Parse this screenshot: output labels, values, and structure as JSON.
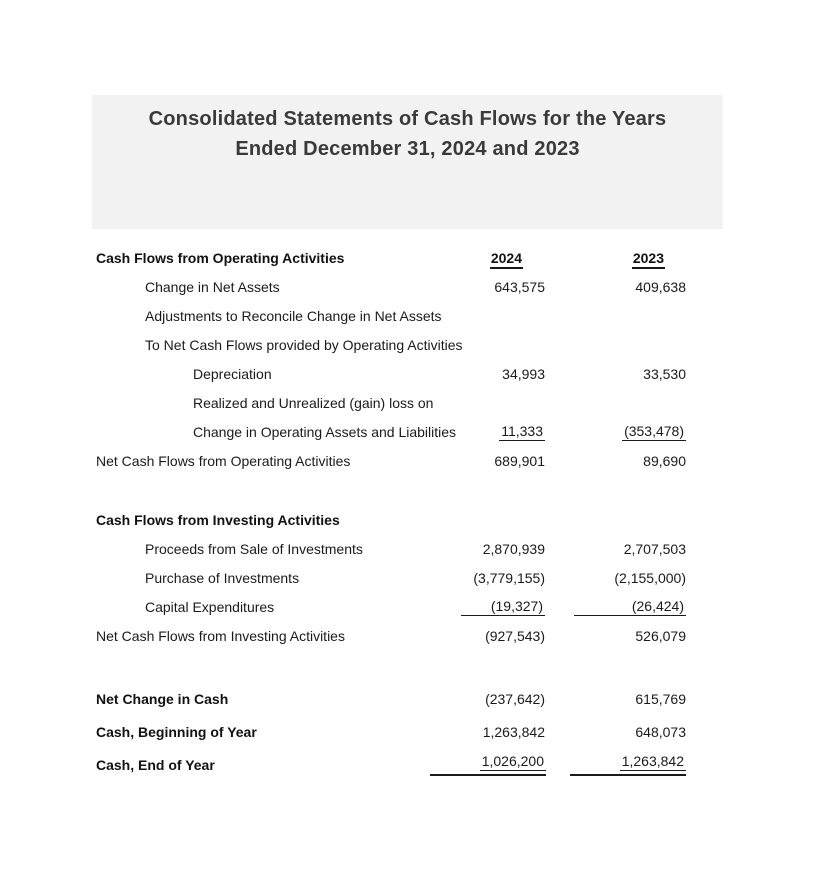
{
  "document": {
    "title_line1": "Consolidated Statements of Cash Flows for the Years",
    "title_line2": "Ended December 31, 2024 and 2023"
  },
  "columns": {
    "year1": "2024",
    "year2": "2023"
  },
  "operating": {
    "heading": "Cash Flows from Operating Activities",
    "rows": [
      {
        "label": "Change in Net Assets",
        "y2024": "643,575",
        "y2023": "409,638"
      },
      {
        "label": "Adjustments to Reconcile Change in Net Assets",
        "y2024": "",
        "y2023": ""
      },
      {
        "label": "To Net Cash Flows provided by Operating Activities",
        "y2024": "",
        "y2023": ""
      },
      {
        "label": "Depreciation",
        "y2024": "34,993",
        "y2023": "33,530"
      },
      {
        "label": "Realized and Unrealized (gain) loss on",
        "y2024": "",
        "y2023": ""
      },
      {
        "label": "Change in Operating Assets and Liabilities",
        "y2024": "11,333",
        "y2023": "(353,478)"
      },
      {
        "label": "Net Cash Flows from Operating Activities",
        "y2024": "689,901",
        "y2023": "89,690"
      }
    ]
  },
  "investing": {
    "heading": "Cash Flows from Investing Activities",
    "rows": [
      {
        "label": "Proceeds from Sale of Investments",
        "y2024": "2,870,939",
        "y2023": "2,707,503"
      },
      {
        "label": "Purchase of Investments",
        "y2024": "(3,779,155)",
        "y2023": "(2,155,000)"
      },
      {
        "label": "Capital Expenditures",
        "y2024": "(19,327)",
        "y2023": "(26,424)"
      },
      {
        "label": "Net Cash Flows from Investing Activities",
        "y2024": "(927,543)",
        "y2023": "526,079"
      }
    ]
  },
  "summary": {
    "rows": [
      {
        "label": "Net Change in Cash",
        "y2024": "(237,642)",
        "y2023": "615,769"
      },
      {
        "label": "Cash, Beginning of Year",
        "y2024": "1,263,842",
        "y2023": "648,073"
      },
      {
        "label": "Cash, End of Year",
        "y2024": "1,026,200",
        "y2023": "1,263,842"
      }
    ]
  },
  "colors": {
    "banner_background": "#f2f2f2",
    "title_text": "#3a3a3a",
    "body_text": "#1a1a1a"
  }
}
